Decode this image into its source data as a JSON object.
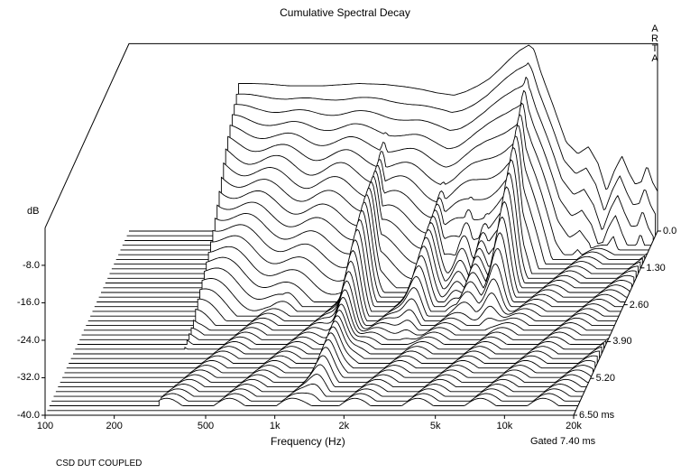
{
  "chart_data": {
    "type": "area",
    "title": "Cumulative Spectral Decay",
    "watermark": "ARTA",
    "xlabel": "Frequency (Hz)",
    "x_scale": "log",
    "xlim": [
      100,
      20000
    ],
    "x_ticks": [
      {
        "value": 100,
        "label": "100"
      },
      {
        "value": 200,
        "label": "200"
      },
      {
        "value": 500,
        "label": "500"
      },
      {
        "value": 1000,
        "label": "1k"
      },
      {
        "value": 2000,
        "label": "2k"
      },
      {
        "value": 5000,
        "label": "5k"
      },
      {
        "value": 10000,
        "label": "10k"
      },
      {
        "value": 20000,
        "label": "20k"
      }
    ],
    "ylabel": "dB",
    "ylim": [
      -40,
      0
    ],
    "y_ticks": [
      {
        "value": -8,
        "label": "-8.0"
      },
      {
        "value": -16,
        "label": "-16.0"
      },
      {
        "value": -24,
        "label": "-24.0"
      },
      {
        "value": -32,
        "label": "-32.0"
      },
      {
        "value": -40,
        "label": "-40.0"
      }
    ],
    "time_unit": "ms",
    "time_ticks": [
      {
        "value": 0.0,
        "label": "0.0"
      },
      {
        "value": 1.3,
        "label": "1.30"
      },
      {
        "value": 2.6,
        "label": "2.60"
      },
      {
        "value": 3.9,
        "label": "3.90"
      },
      {
        "value": 5.2,
        "label": "5.20"
      },
      {
        "value": 6.5,
        "label": "6.50 ms"
      }
    ],
    "tmax": 6.5,
    "slice_count": 40,
    "gated_label": "Gated 7.40 ms",
    "footer": "CSD DUT COUPLED",
    "initial_response": {
      "freq": [
        300,
        340,
        400,
        500,
        700,
        1000,
        1300,
        1600,
        1900,
        2200,
        2600,
        2900,
        3300,
        3700,
        4100,
        4500,
        5000,
        5500,
        5800,
        6200,
        7000,
        8000,
        9000,
        10000,
        11000,
        12000,
        13000,
        14000,
        15000,
        16000,
        17000,
        18000,
        19000,
        20000
      ],
      "db": [
        -8.5,
        -8.5,
        -8.6,
        -9.0,
        -9.0,
        -8.5,
        -8.7,
        -9.2,
        -9.8,
        -10.5,
        -11.0,
        -10.3,
        -9.0,
        -7.5,
        -5.5,
        -3.5,
        -1.5,
        -0.3,
        -1.2,
        -6.0,
        -13.0,
        -21.0,
        -23.5,
        -22.0,
        -25.5,
        -31.5,
        -27.0,
        -24.0,
        -27.5,
        -30.0,
        -29.5,
        -26.0,
        -29.5,
        -31.5
      ]
    },
    "resonances": [
      {
        "freq": 1400,
        "db": -13.0,
        "decay_ms": 6.3
      },
      {
        "freq": 2600,
        "db": -19.0,
        "decay_ms": 4.2
      },
      {
        "freq": 5600,
        "db": -1.0,
        "decay_ms": 3.6
      },
      {
        "freq": 3600,
        "db": -18.0,
        "decay_ms": 3.0
      },
      {
        "freq": 4300,
        "db": -17.0,
        "decay_ms": 3.2
      },
      {
        "freq": 700,
        "db": -27.0,
        "decay_ms": 3.0
      }
    ]
  }
}
